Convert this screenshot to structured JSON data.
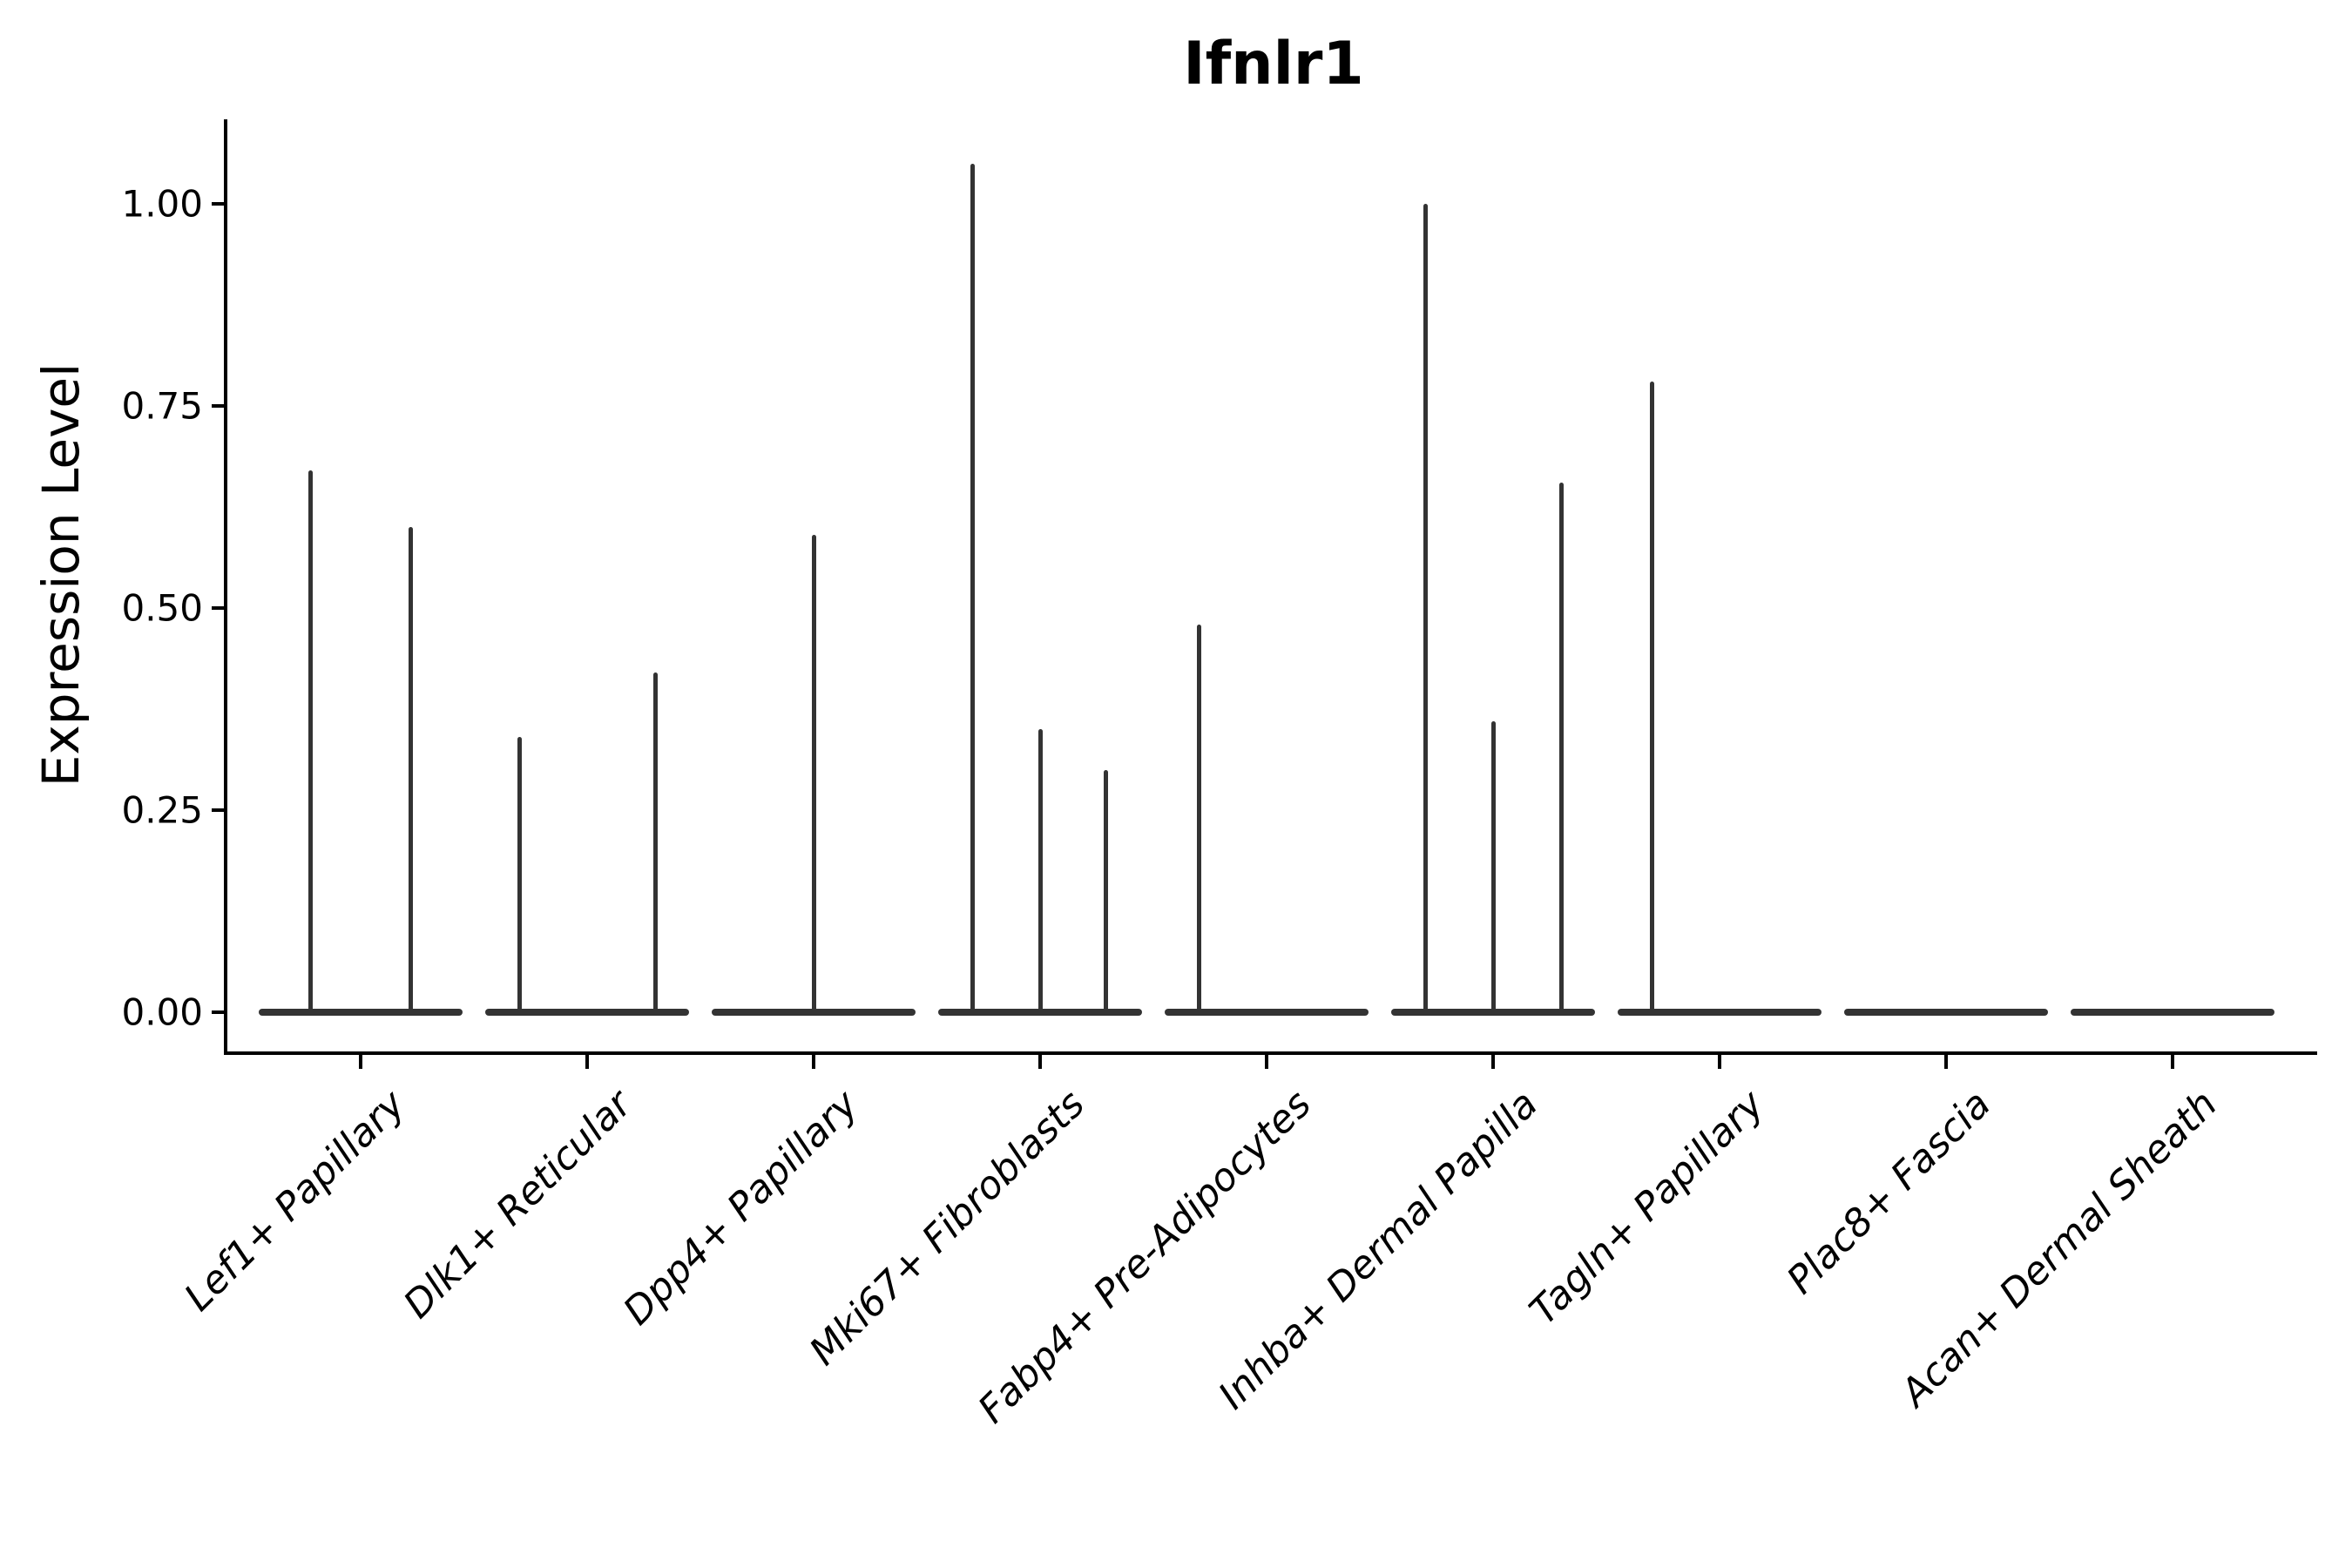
{
  "title": "Ifnlr1",
  "y_axis": {
    "label": "Expression Level",
    "ticks": [
      {
        "label": "1.00",
        "value": 1.0
      },
      {
        "label": "0.75",
        "value": 0.75
      },
      {
        "label": "0.50",
        "value": 0.5
      },
      {
        "label": "0.25",
        "value": 0.25
      },
      {
        "label": "0.00",
        "value": 0.0
      }
    ]
  },
  "chart_data": {
    "type": "violin",
    "title": "Ifnlr1",
    "xlabel": "",
    "ylabel": "Expression Level",
    "ylim": [
      -0.05,
      1.11
    ],
    "grid": false,
    "legend": "none",
    "note": "needle-thin violins: most cells at 0 (flat baseline), sparse expressing cells form vertical spikes",
    "colors": {
      "violin": "#333333",
      "axis": "#000000",
      "text": "#000000",
      "background": "#ffffff"
    },
    "categories": [
      {
        "label": "Lef1+ Papillary",
        "zero_baseline": true,
        "spikes": [
          {
            "x_offset_frac": -0.22,
            "value": 0.67
          },
          {
            "x_offset_frac": 0.22,
            "value": 0.6
          }
        ]
      },
      {
        "label": "Dlk1+ Reticular",
        "zero_baseline": true,
        "spikes": [
          {
            "x_offset_frac": -0.3,
            "value": 0.34
          },
          {
            "x_offset_frac": 0.3,
            "value": 0.42
          }
        ]
      },
      {
        "label": "Dpp4+ Papillary",
        "zero_baseline": true,
        "spikes": [
          {
            "x_offset_frac": 0.0,
            "value": 0.59
          }
        ]
      },
      {
        "label": "Mki67+ Fibroblasts",
        "zero_baseline": true,
        "spikes": [
          {
            "x_offset_frac": -0.3,
            "value": 1.05
          },
          {
            "x_offset_frac": 0.0,
            "value": 0.35
          },
          {
            "x_offset_frac": 0.29,
            "value": 0.3
          }
        ]
      },
      {
        "label": "Fabp4+ Pre-Adipocytes",
        "zero_baseline": true,
        "spikes": [
          {
            "x_offset_frac": -0.3,
            "value": 0.48
          }
        ]
      },
      {
        "label": "Inhba+ Dermal Papilla",
        "zero_baseline": true,
        "spikes": [
          {
            "x_offset_frac": -0.3,
            "value": 1.0
          },
          {
            "x_offset_frac": 0.0,
            "value": 0.36
          },
          {
            "x_offset_frac": 0.3,
            "value": 0.655
          }
        ]
      },
      {
        "label": "Tagln+ Papillary",
        "zero_baseline": true,
        "spikes": [
          {
            "x_offset_frac": -0.3,
            "value": 0.78
          }
        ]
      },
      {
        "label": "Plac8+ Fascia",
        "zero_baseline": true,
        "spikes": []
      },
      {
        "label": "Acan+ Dermal Sheath",
        "zero_baseline": true,
        "spikes": []
      }
    ]
  }
}
